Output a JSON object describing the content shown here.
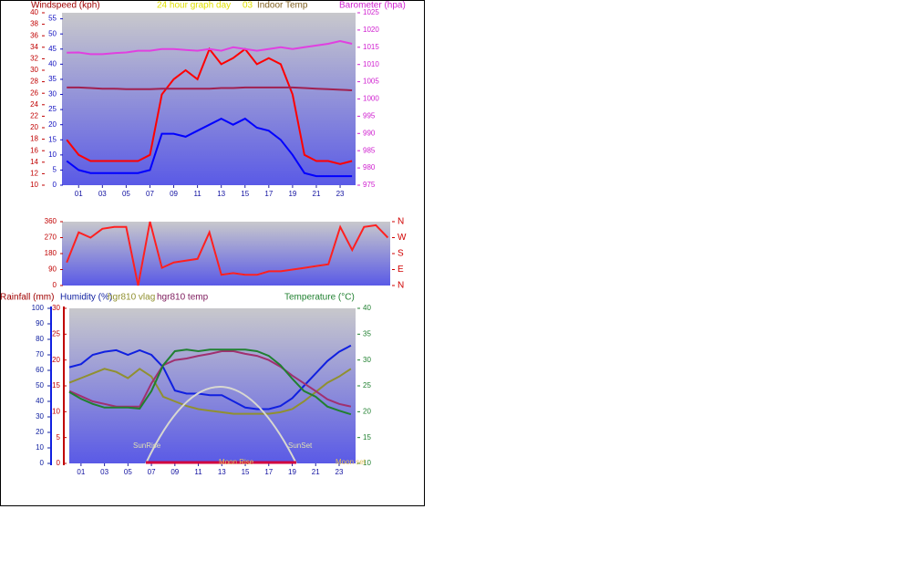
{
  "chart_data": [
    {
      "type": "line",
      "y_label": "Windspeed (kph)",
      "title": "24 hour graph day",
      "subtitle": "03",
      "x": [
        0,
        1,
        2,
        3,
        4,
        5,
        6,
        7,
        8,
        9,
        10,
        11,
        12,
        13,
        14,
        15,
        16,
        17,
        18,
        19,
        20,
        21,
        22,
        23,
        24
      ],
      "xlim": [
        -0.4,
        24.3
      ],
      "xticks": [
        {
          "value": 1,
          "label": "01"
        },
        {
          "value": 3,
          "label": "03"
        },
        {
          "value": 5,
          "label": "05"
        },
        {
          "value": 7,
          "label": "07"
        },
        {
          "value": 9,
          "label": "09"
        },
        {
          "value": 11,
          "label": "11"
        },
        {
          "value": 13,
          "label": "13"
        },
        {
          "value": 15,
          "label": "15"
        },
        {
          "value": 17,
          "label": "17"
        },
        {
          "value": 19,
          "label": "19"
        },
        {
          "value": 21,
          "label": "21"
        },
        {
          "value": 23,
          "label": "23"
        }
      ],
      "ylim": [
        0,
        57
      ],
      "yticks": [
        0,
        5,
        10,
        15,
        20,
        25,
        30,
        35,
        40,
        45,
        50,
        55
      ],
      "y2lim": [
        975,
        1025
      ],
      "y2ticks": [
        975,
        980,
        985,
        990,
        995,
        1000,
        1005,
        1010,
        1015,
        1020,
        1025
      ],
      "y3lim": [
        10,
        40
      ],
      "y3ticks": [
        10,
        12,
        14,
        16,
        18,
        20,
        22,
        24,
        26,
        28,
        30,
        32,
        34,
        36,
        38,
        40
      ],
      "series": [
        {
          "color": "#ff0000",
          "values": [
            15,
            10,
            8,
            8,
            8,
            8,
            8,
            10,
            30,
            35,
            38,
            35,
            45,
            40,
            42,
            45,
            40,
            42,
            40,
            30,
            10,
            8,
            8,
            7,
            8
          ]
        },
        {
          "color": "#0000ff",
          "values": [
            8,
            5,
            4,
            4,
            4,
            4,
            4,
            5,
            17,
            17,
            16,
            18,
            20,
            22,
            20,
            22,
            19,
            18,
            15,
            10,
            4,
            3,
            3,
            3,
            3
          ]
        },
        {
          "name": "Barometer (hpa)",
          "axis": "y2",
          "color": "#e040e0",
          "values": [
            1013.4,
            1013.5,
            1013,
            1013,
            1013.3,
            1013.5,
            1014,
            1014,
            1014.5,
            1014.5,
            1014.2,
            1014,
            1014.5,
            1014,
            1015,
            1014.5,
            1014,
            1014.5,
            1015,
            1014.5,
            1015,
            1015.5,
            1016,
            1016.8,
            1016
          ]
        },
        {
          "name": "Indoor Temp",
          "axis": "y3",
          "color": "#a02050",
          "values": [
            27,
            27,
            26.9,
            26.8,
            26.8,
            26.7,
            26.7,
            26.7,
            26.8,
            26.8,
            26.8,
            26.8,
            26.8,
            26.9,
            26.9,
            27,
            27,
            27,
            27,
            27,
            26.9,
            26.8,
            26.7,
            26.6,
            26.5
          ]
        }
      ]
    },
    {
      "type": "line",
      "x": [
        0,
        1,
        2,
        3,
        4,
        5,
        6,
        7,
        8,
        9,
        10,
        11,
        12,
        13,
        14,
        15,
        16,
        17,
        18,
        19,
        20,
        21,
        22,
        23,
        24,
        25,
        26,
        27
      ],
      "xlim": [
        -0.4,
        27.2
      ],
      "ylim": [
        0,
        360
      ],
      "yticks": [
        0,
        90,
        180,
        270,
        360
      ],
      "y2lim": [
        0,
        360
      ],
      "y2ticks": [
        {
          "value": 360,
          "label": "N"
        },
        {
          "value": 270,
          "label": "W"
        },
        {
          "value": 180,
          "label": "S"
        },
        {
          "value": 90,
          "label": "E"
        },
        {
          "value": 0,
          "label": "N"
        }
      ],
      "series": [
        {
          "color": "#ff2020",
          "values": [
            130,
            300,
            270,
            320,
            330,
            330,
            0,
            360,
            100,
            130,
            140,
            150,
            300,
            60,
            70,
            60,
            60,
            80,
            80,
            90,
            100,
            110,
            120,
            330,
            200,
            330,
            340,
            270
          ]
        }
      ]
    },
    {
      "type": "line",
      "y3_label": "Rainfall (mm)",
      "x": [
        0,
        1,
        2,
        3,
        4,
        5,
        6,
        7,
        8,
        9,
        10,
        11,
        12,
        13,
        14,
        15,
        16,
        17,
        18,
        19,
        20,
        21,
        22,
        23,
        24
      ],
      "xlim": [
        0,
        24.4
      ],
      "xticks": [
        {
          "value": 1,
          "label": "01"
        },
        {
          "value": 3,
          "label": "03"
        },
        {
          "value": 5,
          "label": "05"
        },
        {
          "value": 7,
          "label": "07"
        },
        {
          "value": 9,
          "label": "09"
        },
        {
          "value": 11,
          "label": "11"
        },
        {
          "value": 13,
          "label": "13"
        },
        {
          "value": 15,
          "label": "15"
        },
        {
          "value": 17,
          "label": "17"
        },
        {
          "value": 19,
          "label": "19"
        },
        {
          "value": 21,
          "label": "21"
        },
        {
          "value": 23,
          "label": "23"
        }
      ],
      "ylim": [
        0,
        100
      ],
      "yticks": [
        0,
        10,
        20,
        30,
        40,
        50,
        60,
        70,
        80,
        90,
        100
      ],
      "y2lim": [
        10,
        40
      ],
      "y2ticks": [
        10,
        15,
        20,
        25,
        30,
        35,
        40
      ],
      "y3lim": [
        0,
        30
      ],
      "y3ticks": [
        0,
        5,
        10,
        15,
        20,
        25,
        30
      ],
      "series": [
        {
          "name": "Humidity (%)",
          "color": "#1020e0",
          "values": [
            62,
            64,
            70,
            72,
            73,
            70,
            73,
            70,
            62,
            47,
            45,
            45,
            44,
            44,
            40,
            36,
            35,
            35,
            37,
            42,
            50,
            58,
            66,
            72,
            76
          ]
        },
        {
          "name": "hgr810 vlag",
          "color": "#909030",
          "values": [
            52,
            55,
            58,
            61,
            59,
            55,
            61,
            56,
            43,
            40,
            37,
            35,
            34,
            33,
            32,
            32,
            32,
            32,
            33,
            35,
            40,
            46,
            52,
            56,
            61
          ]
        },
        {
          "name": "hgr810 temp",
          "axis": "y2",
          "color": "#a03070",
          "values": [
            24,
            23,
            22,
            21.5,
            21,
            21,
            21,
            25.5,
            29,
            30,
            30.3,
            30.8,
            31.2,
            31.7,
            31.7,
            31.2,
            30.8,
            30,
            28.7,
            27,
            25.5,
            24,
            22.4,
            21.5,
            21
          ]
        },
        {
          "name": "Temperature (°C)",
          "axis": "y2",
          "color": "#208030",
          "values": [
            23.8,
            22.5,
            21.5,
            20.8,
            20.8,
            20.8,
            20.6,
            24,
            29,
            31.7,
            32,
            31.7,
            32,
            32,
            32,
            32,
            31.7,
            30.8,
            29,
            26.4,
            24,
            22.9,
            21,
            20.2,
            19.5
          ]
        }
      ],
      "annotations": [
        "SunRise",
        "SunSet",
        "Moon Rise",
        "Moon set"
      ]
    }
  ]
}
